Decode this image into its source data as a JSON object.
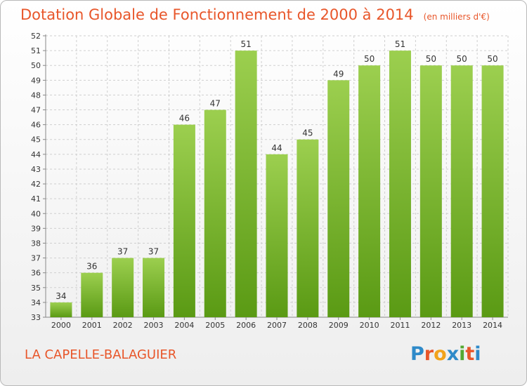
{
  "header": {
    "title": "Dotation Globale de Fonctionnement de 2000 à 2014",
    "subtitle": "(en milliers d'€)"
  },
  "footer": {
    "place": "LA CAPELLE-BALAGUIER",
    "logo_text": "Proxiti",
    "logo_colors": [
      "#2f8ac9",
      "#e8562a",
      "#f2a31b",
      "#2f8ac9",
      "#55a832",
      "#e8562a",
      "#2f8ac9"
    ]
  },
  "colors": {
    "accent": "#e8562a",
    "bar_top": "#9ccf4f",
    "bar_bottom": "#5a9a14",
    "grid": "#cfcfcf"
  },
  "chart_data": {
    "type": "bar",
    "categories": [
      "2000",
      "2001",
      "2002",
      "2003",
      "2004",
      "2005",
      "2006",
      "2007",
      "2008",
      "2009",
      "2010",
      "2011",
      "2012",
      "2013",
      "2014"
    ],
    "values": [
      34,
      36,
      37,
      37,
      46,
      47,
      51,
      44,
      45,
      49,
      50,
      51,
      50,
      50,
      50
    ],
    "ylim": [
      33,
      52
    ],
    "yticks": [
      33,
      34,
      35,
      36,
      37,
      38,
      39,
      40,
      41,
      42,
      43,
      44,
      45,
      46,
      47,
      48,
      49,
      50,
      51,
      52
    ],
    "grid": true,
    "data_labels": true,
    "legend": "none",
    "xlabel": "",
    "ylabel": ""
  }
}
